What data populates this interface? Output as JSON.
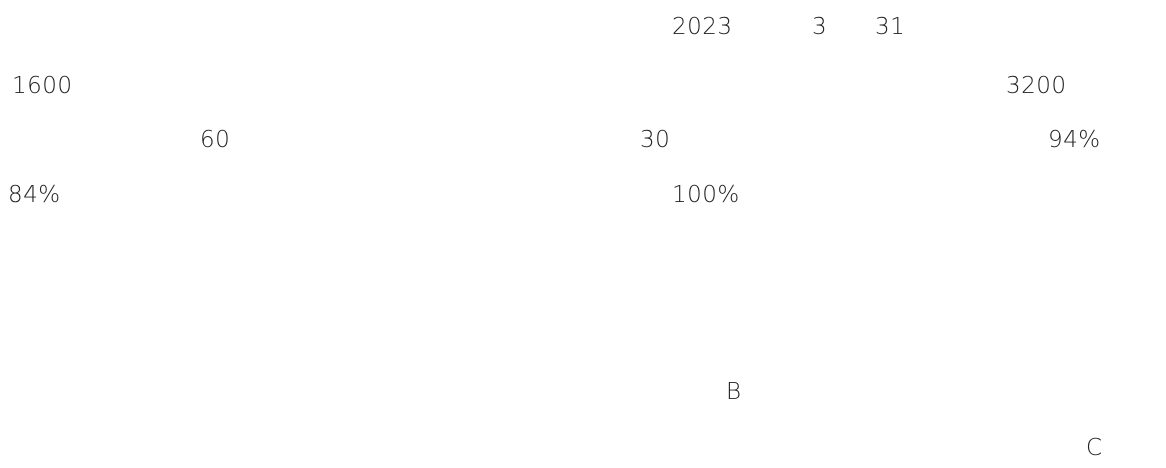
{
  "lines": [
    [
      "2023",
      "3",
      "31"
    ],
    [
      "1600",
      "3200"
    ],
    [
      "60",
      "30",
      "94%"
    ],
    [
      "84%",
      "100%"
    ],
    [
      "B"
    ],
    [
      "C"
    ]
  ]
}
